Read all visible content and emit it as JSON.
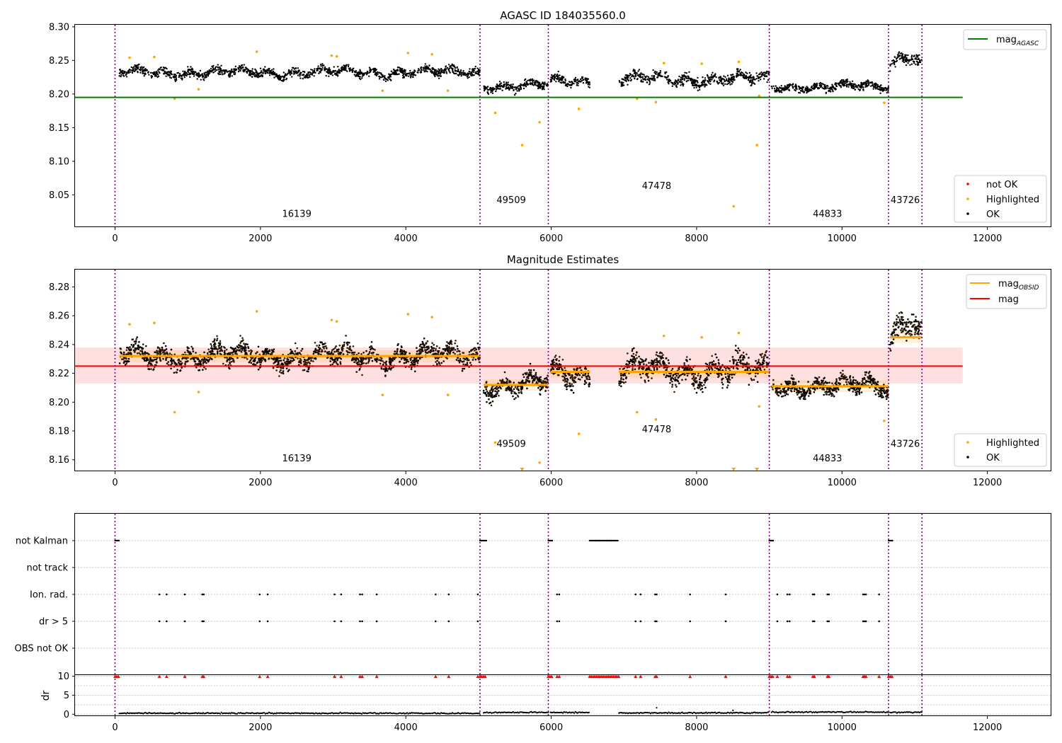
{
  "chart_data": [
    {
      "type": "scatter",
      "title": "AGASC ID 184035560.0",
      "xlabel": "",
      "ylabel": "",
      "xlim": [
        -550,
        12880
      ],
      "ylim": [
        8.002,
        8.303
      ],
      "xticks": [
        0,
        2000,
        4000,
        6000,
        8000,
        10000,
        12000
      ],
      "yticks": [
        8.05,
        8.1,
        8.15,
        8.2,
        8.25,
        8.3
      ],
      "legend_top": {
        "position": "upper right",
        "entries": [
          {
            "label": "mag",
            "subscript": "AGASC",
            "color": "#008000"
          }
        ]
      },
      "legend_bottom": {
        "position": "lower right",
        "entries": [
          {
            "label": "not OK",
            "color": "#ff0000"
          },
          {
            "label": "Highlighted",
            "color": "#ffa500"
          },
          {
            "label": "OK",
            "color": "#000000"
          }
        ]
      },
      "mag_agasc": 8.195,
      "mag_agasc_xrange": [
        -550,
        11660
      ],
      "obsid_boundaries": [
        0,
        5020,
        5960,
        9000,
        10640,
        11100
      ],
      "obsid_labels": [
        {
          "text": "16139",
          "x": 2500,
          "y": 8.017
        },
        {
          "text": "49509",
          "x": 5450,
          "y": 8.038
        },
        {
          "text": "47478",
          "x": 7450,
          "y": 8.059
        },
        {
          "text": "44833",
          "x": 9800,
          "y": 8.017
        },
        {
          "text": "43726",
          "x": 10870,
          "y": 8.038
        }
      ],
      "segments": [
        {
          "x": [
            60,
            5020
          ],
          "mean": 8.232,
          "spread": 0.008
        },
        {
          "x": [
            5070,
            5960
          ],
          "mean": 8.212,
          "spread": 0.008
        },
        {
          "x": [
            5990,
            6530
          ],
          "mean": 8.219,
          "spread": 0.009
        },
        {
          "x": [
            6930,
            9000
          ],
          "mean": 8.222,
          "spread": 0.01
        },
        {
          "x": [
            9030,
            10640
          ],
          "mean": 8.211,
          "spread": 0.007
        },
        {
          "x": [
            10660,
            11100
          ],
          "mean": 8.246,
          "spread": 0.01
        }
      ],
      "highlighted_points": [
        [
          5230,
          8.172
        ],
        [
          5600,
          8.124
        ],
        [
          5840,
          8.158
        ],
        [
          6380,
          8.178
        ],
        [
          8510,
          8.033
        ],
        [
          8830,
          8.124
        ],
        [
          820,
          8.193
        ],
        [
          1150,
          8.207
        ],
        [
          3680,
          8.205
        ],
        [
          4580,
          8.205
        ],
        [
          7180,
          8.193
        ],
        [
          7440,
          8.188
        ],
        [
          8860,
          8.197
        ],
        [
          10580,
          8.187
        ],
        [
          200,
          8.254
        ],
        [
          540,
          8.255
        ],
        [
          1950,
          8.263
        ],
        [
          2980,
          8.257
        ],
        [
          3050,
          8.256
        ],
        [
          4030,
          8.261
        ],
        [
          4360,
          8.259
        ],
        [
          7550,
          8.246
        ],
        [
          8070,
          8.245
        ],
        [
          8580,
          8.248
        ]
      ]
    },
    {
      "type": "scatter",
      "title": "Magnitude Estimates",
      "xlabel": "",
      "ylabel": "",
      "xlim": [
        -550,
        12880
      ],
      "ylim": [
        8.152,
        8.292
      ],
      "xticks": [
        0,
        2000,
        4000,
        6000,
        8000,
        10000,
        12000
      ],
      "yticks": [
        8.16,
        8.18,
        8.2,
        8.22,
        8.24,
        8.26,
        8.28
      ],
      "legend_top": {
        "position": "upper right",
        "entries": [
          {
            "label": "mag",
            "subscript": "OBSID",
            "color": "#ffa500"
          },
          {
            "label": "mag",
            "color": "#ff0000"
          }
        ]
      },
      "legend_bottom": {
        "position": "lower right",
        "entries": [
          {
            "label": "Highlighted",
            "color": "#ffa500"
          },
          {
            "label": "OK",
            "color": "#000000"
          }
        ]
      },
      "mag": 8.225,
      "mag_band": [
        8.213,
        8.238
      ],
      "mag_xrange": [
        -550,
        11660
      ],
      "obsid_boundaries": [
        0,
        5020,
        5960,
        9000,
        10640,
        11100
      ],
      "mag_obsid": [
        {
          "x": [
            60,
            5020
          ],
          "value": 8.232
        },
        {
          "x": [
            5070,
            5960
          ],
          "value": 8.212
        },
        {
          "x": [
            5990,
            6530
          ],
          "value": 8.221
        },
        {
          "x": [
            6930,
            9000
          ],
          "value": 8.221
        },
        {
          "x": [
            9030,
            10640
          ],
          "value": 8.211
        },
        {
          "x": [
            10660,
            11100
          ],
          "value": 8.245
        }
      ],
      "obsid_labels": [
        {
          "text": "16139",
          "x": 2500,
          "y": 8.159
        },
        {
          "text": "49509",
          "x": 5450,
          "y": 8.169
        },
        {
          "text": "47478",
          "x": 7450,
          "y": 8.179
        },
        {
          "text": "44833",
          "x": 9800,
          "y": 8.159
        },
        {
          "text": "43726",
          "x": 10870,
          "y": 8.169
        }
      ],
      "highlighted_points": [
        [
          5230,
          8.172
        ],
        [
          5840,
          8.158
        ],
        [
          6380,
          8.178
        ],
        [
          820,
          8.193
        ],
        [
          1150,
          8.207
        ],
        [
          3680,
          8.205
        ],
        [
          4580,
          8.205
        ],
        [
          7180,
          8.193
        ],
        [
          7440,
          8.188
        ],
        [
          8860,
          8.197
        ],
        [
          10580,
          8.187
        ],
        [
          200,
          8.254
        ],
        [
          540,
          8.255
        ],
        [
          1950,
          8.263
        ],
        [
          2980,
          8.257
        ],
        [
          3050,
          8.256
        ],
        [
          4030,
          8.261
        ],
        [
          4360,
          8.259
        ],
        [
          7550,
          8.246
        ],
        [
          8070,
          8.245
        ],
        [
          8580,
          8.248
        ]
      ],
      "offscale_markers": [
        [
          5600,
          8.152
        ],
        [
          8510,
          8.152
        ],
        [
          8830,
          8.152
        ]
      ]
    },
    {
      "type": "scatter",
      "title": "",
      "xlabel": "",
      "ylabel": "",
      "xlim": [
        -550,
        12880
      ],
      "categories": [
        "not Kalman",
        "not track",
        "Ion. rad.",
        "dr > 5",
        "OBS not OK"
      ],
      "obsid_boundaries": [
        0,
        5020,
        5960,
        9000,
        10640,
        11100
      ],
      "flags": {
        "not Kalman": [
          [
            0,
            70
          ],
          [
            5020,
            5110
          ],
          [
            5960,
            6030
          ],
          [
            6530,
            6930
          ],
          [
            9000,
            9060
          ],
          [
            10640,
            10700
          ]
        ],
        "Ion. rad.": [
          610,
          710,
          960,
          1200,
          1220,
          1990,
          2100,
          3020,
          3110,
          3370,
          3400,
          3600,
          4410,
          4590,
          4990,
          6080,
          6110,
          7160,
          7230,
          7430,
          7450,
          7910,
          8400,
          9110,
          9250,
          9280,
          9600,
          9620,
          9800,
          9820,
          10290,
          10310,
          10330,
          10510
        ],
        "dr > 5": [
          610,
          710,
          960,
          1200,
          1220,
          1990,
          2100,
          3020,
          3110,
          3370,
          3400,
          3600,
          4410,
          4590,
          4990,
          6080,
          6110,
          7160,
          7230,
          7430,
          7450,
          7910,
          8400,
          9110,
          9250,
          9280,
          9600,
          9620,
          9800,
          9820,
          10290,
          10310,
          10330,
          10510
        ]
      }
    },
    {
      "type": "scatter",
      "title": "",
      "xlabel": "",
      "ylabel": "dr",
      "xlim": [
        -550,
        12880
      ],
      "ylim": [
        -0.5,
        10.3
      ],
      "xticks": [
        0,
        2000,
        4000,
        6000,
        8000,
        10000,
        12000
      ],
      "yticks": [
        0,
        5,
        10
      ],
      "obsid_boundaries": [
        0,
        5020,
        5960,
        9000,
        10640,
        11100
      ],
      "clipped_value": 10,
      "dr_segments": [
        {
          "x": [
            60,
            5020
          ],
          "value": 0.25
        },
        {
          "x": [
            5070,
            5960
          ],
          "value": 0.45
        },
        {
          "x": [
            5990,
            6530
          ],
          "value": 0.45
        },
        {
          "x": [
            6930,
            9000
          ],
          "value": 0.35
        },
        {
          "x": [
            9030,
            10640
          ],
          "value": 0.55
        },
        {
          "x": [
            10660,
            11100
          ],
          "value": 0.5
        }
      ],
      "dr_outliers": [
        [
          7450,
          1.7
        ],
        [
          8500,
          1.0
        ]
      ]
    }
  ]
}
